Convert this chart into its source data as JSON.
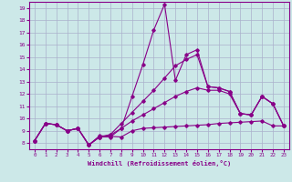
{
  "xlabel": "Windchill (Refroidissement éolien,°C)",
  "bg_color": "#cce8e8",
  "line_color": "#880088",
  "grid_color": "#aab0cc",
  "xlim": [
    -0.5,
    23.5
  ],
  "ylim": [
    7.5,
    19.5
  ],
  "xticks": [
    0,
    1,
    2,
    3,
    4,
    5,
    6,
    7,
    8,
    9,
    10,
    11,
    12,
    13,
    14,
    15,
    16,
    17,
    18,
    19,
    20,
    21,
    22,
    23
  ],
  "yticks": [
    8,
    9,
    10,
    11,
    12,
    13,
    14,
    15,
    16,
    17,
    18,
    19
  ],
  "series": [
    [
      8.2,
      9.6,
      9.5,
      9.0,
      9.2,
      7.85,
      8.6,
      8.55,
      8.5,
      9.0,
      9.2,
      9.25,
      9.3,
      9.35,
      9.4,
      9.45,
      9.5,
      9.6,
      9.65,
      9.7,
      9.75,
      9.8,
      9.4,
      9.4
    ],
    [
      8.2,
      9.6,
      9.5,
      9.0,
      9.2,
      7.85,
      8.5,
      8.5,
      9.2,
      11.8,
      14.4,
      17.2,
      19.3,
      13.1,
      15.2,
      15.6,
      12.6,
      12.5,
      12.2,
      10.4,
      10.3,
      11.8,
      11.2,
      9.4
    ],
    [
      8.2,
      9.6,
      9.5,
      9.0,
      9.2,
      7.85,
      8.5,
      8.7,
      9.6,
      10.5,
      11.4,
      12.3,
      13.3,
      14.3,
      14.8,
      15.2,
      12.6,
      12.5,
      12.2,
      10.4,
      10.3,
      11.8,
      11.2,
      9.4
    ],
    [
      8.2,
      9.6,
      9.5,
      9.0,
      9.2,
      7.85,
      8.5,
      8.65,
      9.2,
      9.8,
      10.3,
      10.8,
      11.3,
      11.8,
      12.2,
      12.5,
      12.3,
      12.3,
      12.0,
      10.4,
      10.3,
      11.8,
      11.2,
      9.4
    ]
  ]
}
